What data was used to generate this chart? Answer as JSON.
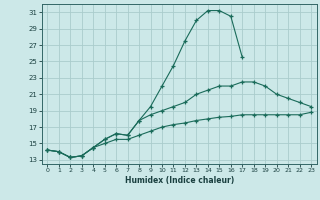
{
  "xlabel": "Humidex (Indice chaleur)",
  "background_color": "#cce8e8",
  "grid_color": "#aacccc",
  "line_color": "#1a6b5a",
  "xlim": [
    -0.5,
    23.5
  ],
  "ylim": [
    12.5,
    32.0
  ],
  "xticks": [
    0,
    1,
    2,
    3,
    4,
    5,
    6,
    7,
    8,
    9,
    10,
    11,
    12,
    13,
    14,
    15,
    16,
    17,
    18,
    19,
    20,
    21,
    22,
    23
  ],
  "yticks": [
    13,
    15,
    17,
    19,
    21,
    23,
    25,
    27,
    29,
    31
  ],
  "series1_x": [
    0,
    1,
    2,
    3,
    4,
    5,
    6,
    7,
    8,
    9,
    10,
    11,
    12,
    13,
    14,
    15,
    16,
    17
  ],
  "series1_y": [
    14.2,
    14.0,
    13.3,
    13.5,
    14.5,
    15.5,
    16.2,
    16.0,
    17.8,
    19.5,
    22.0,
    24.5,
    27.5,
    30.0,
    31.2,
    31.2,
    30.5,
    25.5
  ],
  "series2_x": [
    0,
    1,
    2,
    3,
    4,
    5,
    6,
    7,
    8,
    9,
    10,
    11,
    12,
    13,
    14,
    15,
    16,
    17,
    18,
    19,
    20,
    21,
    22,
    23
  ],
  "series2_y": [
    14.2,
    14.0,
    13.3,
    13.5,
    14.5,
    15.5,
    16.2,
    16.0,
    17.8,
    18.5,
    19.0,
    19.5,
    20.0,
    21.0,
    21.5,
    22.0,
    22.0,
    22.5,
    22.5,
    22.0,
    21.0,
    20.5,
    20.0,
    19.5
  ],
  "series3_x": [
    0,
    1,
    2,
    3,
    4,
    5,
    6,
    7,
    8,
    9,
    10,
    11,
    12,
    13,
    14,
    15,
    16,
    17,
    18,
    19,
    20,
    21,
    22,
    23
  ],
  "series3_y": [
    14.2,
    14.0,
    13.3,
    13.5,
    14.5,
    15.0,
    15.5,
    15.5,
    16.0,
    16.5,
    17.0,
    17.3,
    17.5,
    17.8,
    18.0,
    18.2,
    18.3,
    18.5,
    18.5,
    18.5,
    18.5,
    18.5,
    18.5,
    18.8
  ]
}
